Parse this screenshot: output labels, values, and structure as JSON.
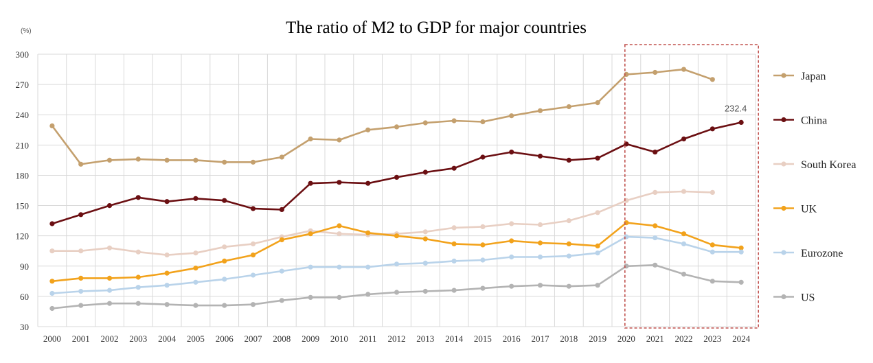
{
  "chart_data": {
    "type": "line",
    "title": "The ratio of M2 to GDP for major countries",
    "unit_label": "(%)",
    "x": [
      "2000",
      "2001",
      "2002",
      "2003",
      "2004",
      "2005",
      "2006",
      "2007",
      "2008",
      "2009",
      "2010",
      "2011",
      "2012",
      "2013",
      "2014",
      "2015",
      "2016",
      "2017",
      "2018",
      "2019",
      "2020",
      "2021",
      "2022",
      "2023",
      "2024"
    ],
    "y_ticks": [
      "30",
      "60",
      "90",
      "120",
      "150",
      "180",
      "210",
      "240",
      "270",
      "300"
    ],
    "ylim": [
      30,
      300
    ],
    "grid": true,
    "legend_position": "right",
    "series": [
      {
        "name": "Japan",
        "color": "#c4a06e",
        "values": [
          229,
          191,
          195,
          196,
          195,
          195,
          193,
          193,
          198,
          216,
          215,
          225,
          228,
          232,
          234,
          233,
          239,
          244,
          248,
          252,
          280,
          282,
          285,
          275,
          null
        ]
      },
      {
        "name": "China",
        "color": "#6b0f12",
        "values": [
          132,
          141,
          150,
          158,
          154,
          157,
          155,
          147,
          146,
          172,
          173,
          172,
          178,
          183,
          187,
          198,
          203,
          199,
          195,
          197,
          211,
          203,
          216,
          226,
          232.4
        ]
      },
      {
        "name": "South Korea",
        "color": "#e8cfc3",
        "values": [
          105,
          105,
          108,
          104,
          101,
          103,
          109,
          112,
          119,
          125,
          122,
          121,
          122,
          124,
          128,
          129,
          132,
          131,
          135,
          143,
          155,
          163,
          164,
          163,
          null
        ]
      },
      {
        "name": "UK",
        "color": "#f2a21b",
        "values": [
          75,
          78,
          78,
          79,
          83,
          88,
          95,
          101,
          116,
          122,
          130,
          123,
          120,
          117,
          112,
          111,
          115,
          113,
          112,
          110,
          133,
          130,
          122,
          111,
          108
        ]
      },
      {
        "name": "Eurozone",
        "color": "#b9d3ea",
        "values": [
          63,
          65,
          66,
          69,
          71,
          74,
          77,
          81,
          85,
          89,
          89,
          89,
          92,
          93,
          95,
          96,
          99,
          99,
          100,
          103,
          119,
          118,
          112,
          104,
          104
        ]
      },
      {
        "name": "US",
        "color": "#b3b3b3",
        "values": [
          48,
          51,
          53,
          53,
          52,
          51,
          51,
          52,
          56,
          59,
          59,
          62,
          64,
          65,
          66,
          68,
          70,
          71,
          70,
          71,
          90,
          91,
          82,
          75,
          74
        ]
      }
    ],
    "annotations": [
      {
        "text": "232.4",
        "series": "China",
        "x": "2024"
      }
    ],
    "highlight_range": [
      "2021",
      "2024"
    ]
  }
}
